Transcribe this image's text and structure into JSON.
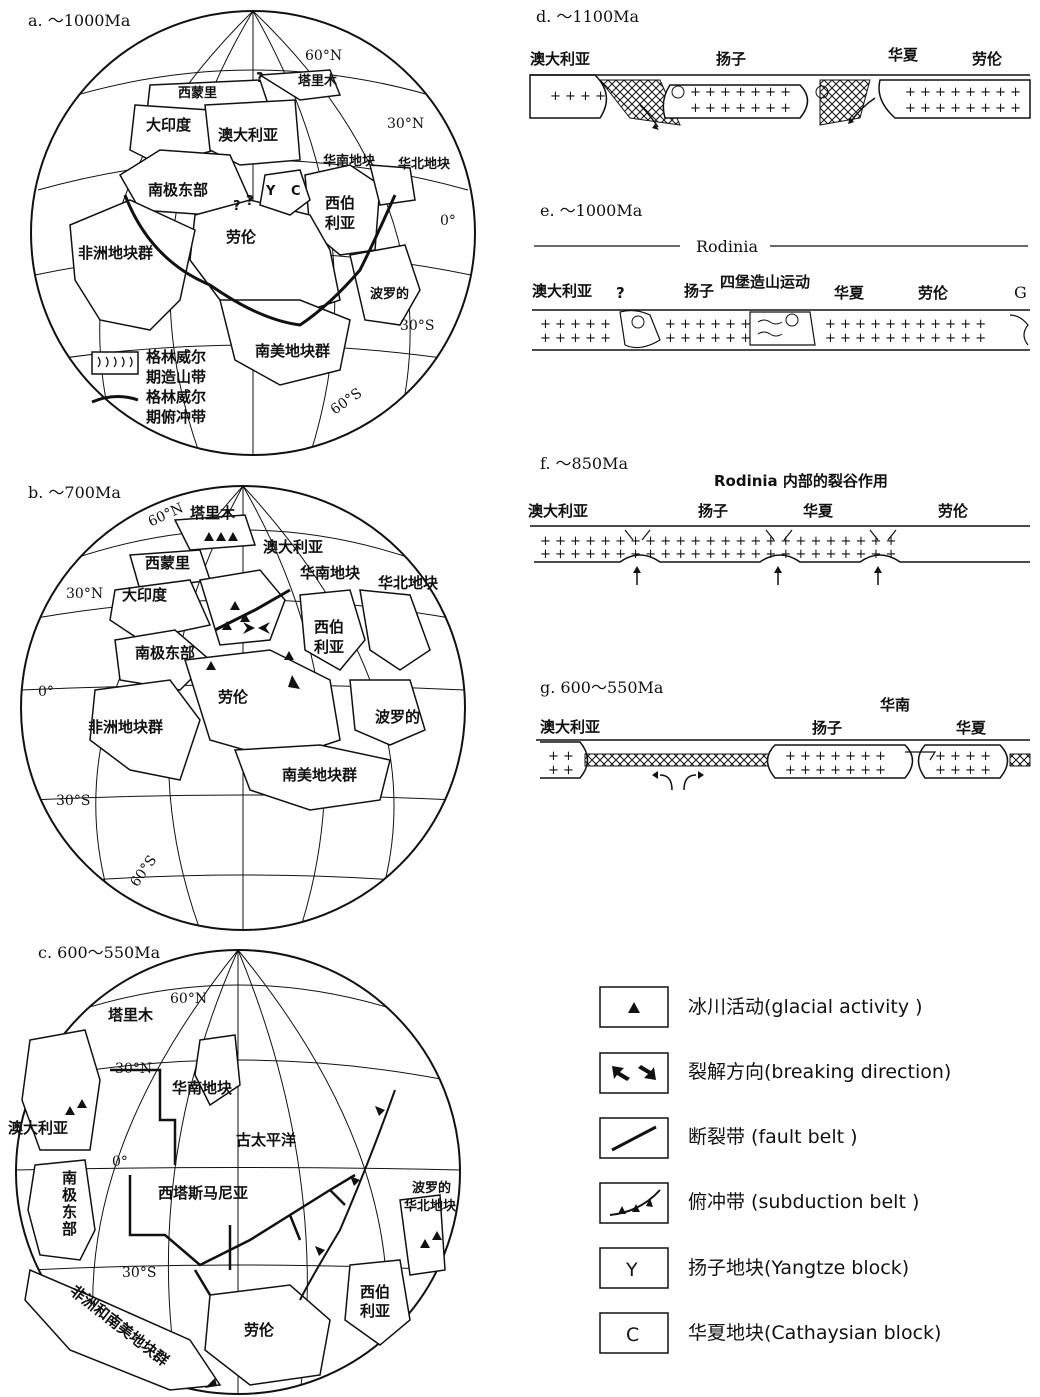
{
  "panels": {
    "a": {
      "title": "a. ～1000Ma",
      "labels": {
        "ximengli": "西蒙里",
        "talimu": "塔里木",
        "dayindu": "大印度",
        "aodaliya": "澳大利亚",
        "huanan": "华南地块",
        "huabei": "华北地块",
        "nanji": "南极东部",
        "xiboliya1": "西伯",
        "xiboliya2": "利亚",
        "feizhou": "非洲地块群",
        "laolun": "劳伦",
        "boluode": "波罗的",
        "nanmei": "南美地块群",
        "y": "Y",
        "c": "C",
        "q1": "?",
        "q2": "?",
        "q3": "?"
      },
      "lats": {
        "n60": "60°N",
        "n30": "30°N",
        "eq": "0°",
        "s30": "30°S",
        "s60": "60°S"
      },
      "legend": {
        "orogen1": "格林威尔",
        "orogen2": "期造山带",
        "thrust1": "格林威尔",
        "thrust2": "期俯冲带"
      }
    },
    "b": {
      "title": "b. ～700Ma",
      "labels": {
        "talimu": "塔里木",
        "ximengli": "西蒙里",
        "aodaliya": "澳大利亚",
        "huanan": "华南地块",
        "huabei": "华北地块",
        "dayindu": "大印度",
        "nanji": "南极东部",
        "xiboliya1": "西伯",
        "xiboliya2": "利亚",
        "laolun": "劳伦",
        "feizhou": "非洲地块群",
        "boluode": "波罗的",
        "nanmei": "南美地块群"
      },
      "lats": {
        "n60": "60°N",
        "n30": "30°N",
        "eq": "0°",
        "s30": "30°S",
        "s60": "60°S"
      }
    },
    "c": {
      "title": "c. 600～550Ma",
      "labels": {
        "talimu": "塔里木",
        "huanan": "华南地块",
        "aodaliya": "澳大利亚",
        "gutaipingyang": "古太平洋",
        "nanji1": "南",
        "nanji2": "极",
        "nanji3": "东",
        "nanji4": "部",
        "xitasi": "西塔斯马尼亚",
        "boluode": "波罗的",
        "huabei": "华北地块",
        "xiboliya1": "西伯",
        "xiboliya2": "利亚",
        "laolun": "劳伦",
        "feinan": "非洲和南美地块群"
      },
      "lats": {
        "n60": "60°N",
        "n30": "30°N",
        "eq": "0°",
        "s30": "30°S"
      }
    },
    "d": {
      "title": "d. ～1100Ma",
      "labels": {
        "aodaliya": "澳大利亚",
        "yangzi": "扬子",
        "huaxia": "华夏",
        "laolun": "劳伦"
      }
    },
    "e": {
      "title": "e. ～1000Ma",
      "labels": {
        "rodinia": "Rodinia",
        "aodaliya": "澳大利亚",
        "q": "?",
        "yangzi": "扬子",
        "sibao": "四堡造山运动",
        "huaxia": "华夏",
        "laolun": "劳伦",
        "g": "G"
      }
    },
    "f": {
      "title": "f. ～850Ma",
      "labels": {
        "rift": "Rodinia 内部的裂谷作用",
        "aodaliya": "澳大利亚",
        "yangzi": "扬子",
        "huaxia": "华夏",
        "laolun": "劳伦"
      }
    },
    "g": {
      "title": "g. 600～550Ma",
      "labels": {
        "aodaliya": "澳大利亚",
        "yangzi": "扬子",
        "huanan": "华南",
        "huaxia": "华夏"
      }
    }
  },
  "legend": {
    "glacial": "冰川活动(glacial activity )",
    "breaking": "裂解方向(breaking direction)",
    "fault": "断裂带 (fault belt )",
    "subduction": "俯冲带 (subduction belt )",
    "yangtze_symbol": "Y",
    "yangtze": "扬子地块(Yangtze block)",
    "cathaysia_symbol": "C",
    "cathaysia": "华夏地块(Cathaysian block)"
  }
}
